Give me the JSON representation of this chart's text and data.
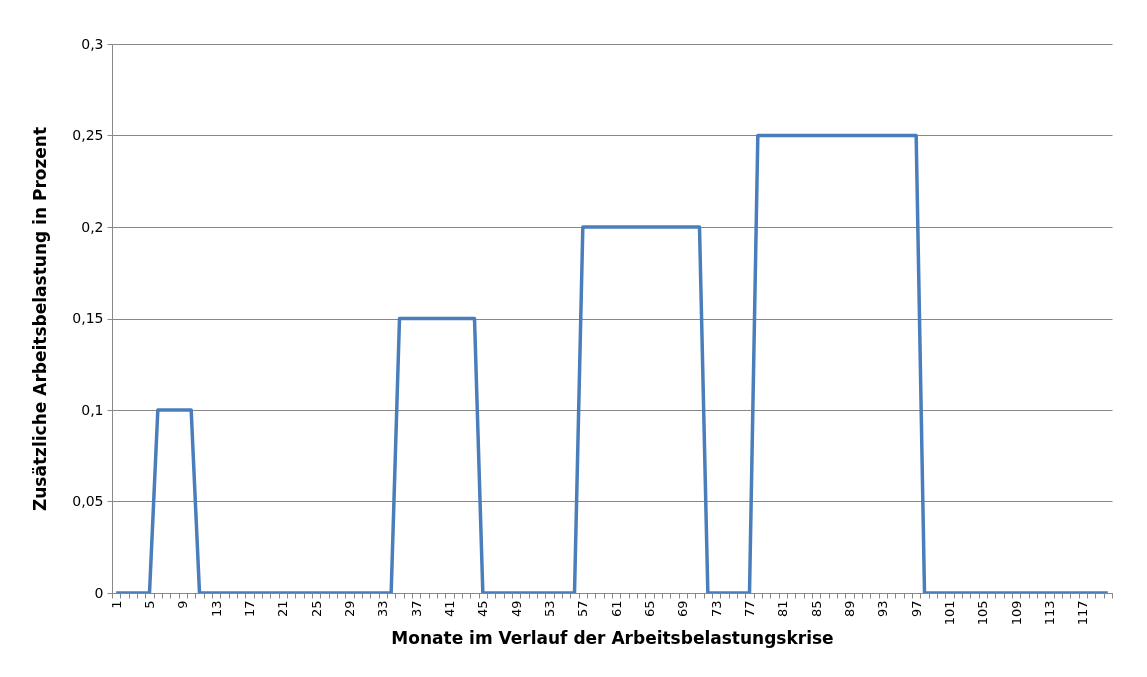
{
  "chart_data": {
    "type": "line",
    "xlabel": "Monate im Verlauf der Arbeitsbelastungskrise",
    "ylabel": "Zusätzliche Arbeitsbelastung in Prozent",
    "categories": [
      "1",
      null,
      null,
      null,
      "5",
      null,
      null,
      null,
      "9",
      null,
      null,
      null,
      "13",
      null,
      null,
      null,
      "17",
      null,
      null,
      null,
      "21",
      null,
      null,
      null,
      "25",
      null,
      null,
      null,
      "29",
      null,
      null,
      null,
      "33",
      null,
      null,
      null,
      "37",
      null,
      null,
      null,
      "41",
      null,
      null,
      null,
      "45",
      null,
      null,
      null,
      "49",
      null,
      null,
      null,
      "53",
      null,
      null,
      null,
      "57",
      null,
      null,
      null,
      "61",
      null,
      null,
      null,
      "65",
      null,
      null,
      null,
      "69",
      null,
      null,
      null,
      "73",
      null,
      null,
      null,
      "77",
      null,
      null,
      null,
      "81",
      null,
      null,
      null,
      "85",
      null,
      null,
      null,
      "89",
      null,
      null,
      null,
      "93",
      null,
      null,
      null,
      "97",
      null,
      null,
      null,
      "101",
      null,
      null,
      null,
      "105",
      null,
      null,
      null,
      "109",
      null,
      null,
      null,
      "113",
      null,
      null,
      null,
      "117",
      null,
      null,
      null
    ],
    "series": [
      {
        "color": "#4a7ebb",
        "values": [
          0,
          0,
          0,
          0,
          0,
          0.1,
          0.1,
          0.1,
          0.1,
          0.1,
          0,
          0,
          0,
          0,
          0,
          0,
          0,
          0,
          0,
          0,
          0,
          0,
          0,
          0,
          0,
          0,
          0,
          0,
          0,
          0,
          0,
          0,
          0,
          0,
          0.15,
          0.15,
          0.15,
          0.15,
          0.15,
          0.15,
          0.15,
          0.15,
          0.15,
          0.15,
          0,
          0,
          0,
          0,
          0,
          0,
          0,
          0,
          0,
          0,
          0,
          0,
          0.2,
          0.2,
          0.2,
          0.2,
          0.2,
          0.2,
          0.2,
          0.2,
          0.2,
          0.2,
          0.2,
          0.2,
          0.2,
          0.2,
          0.2,
          0,
          0,
          0,
          0,
          0,
          0,
          0.25,
          0.25,
          0.25,
          0.25,
          0.25,
          0.25,
          0.25,
          0.25,
          0.25,
          0.25,
          0.25,
          0.25,
          0.25,
          0.25,
          0.25,
          0.25,
          0.25,
          0.25,
          0.25,
          0.25,
          0,
          0,
          0,
          0,
          0,
          0,
          0,
          0,
          0,
          0,
          0,
          0,
          0,
          0,
          0,
          0,
          0,
          0,
          0,
          0,
          0,
          0,
          0
        ]
      }
    ],
    "ylim": [
      0,
      0.3
    ],
    "yticks": [
      0,
      {
        "value": 0.05,
        "label": "0,05"
      },
      {
        "value": 0.1,
        "label": "0,1"
      },
      {
        "value": 0.15,
        "label": "0,15"
      },
      {
        "value": 0.2,
        "label": "0,2"
      },
      {
        "value": 0.25,
        "label": "0,25"
      },
      {
        "value": 0.3,
        "label": "0,3"
      }
    ],
    "grid": "y"
  }
}
